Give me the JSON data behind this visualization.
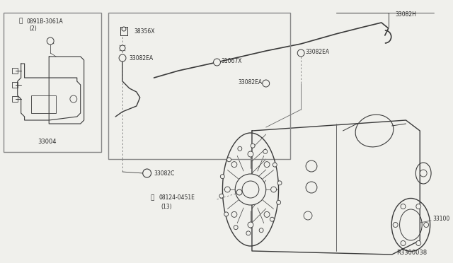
{
  "bg_color": "#f0f0ec",
  "line_color": "#3a3a3a",
  "dark_gray": "#2a2a2a",
  "mid_gray": "#666666",
  "diagram_id": "R3300038",
  "labels": {
    "N_bolt": "0891B-3061A",
    "N_bolt_qty": "(2)",
    "B_bolt": "08124-0451E",
    "B_bolt_qty": "(13)",
    "p38356X": "38356X",
    "p31067X": "31067X",
    "p33082EA": "33082EA",
    "p33082C": "33082C",
    "p33082H": "33082H",
    "p33004": "33004",
    "p33100": "33100"
  }
}
